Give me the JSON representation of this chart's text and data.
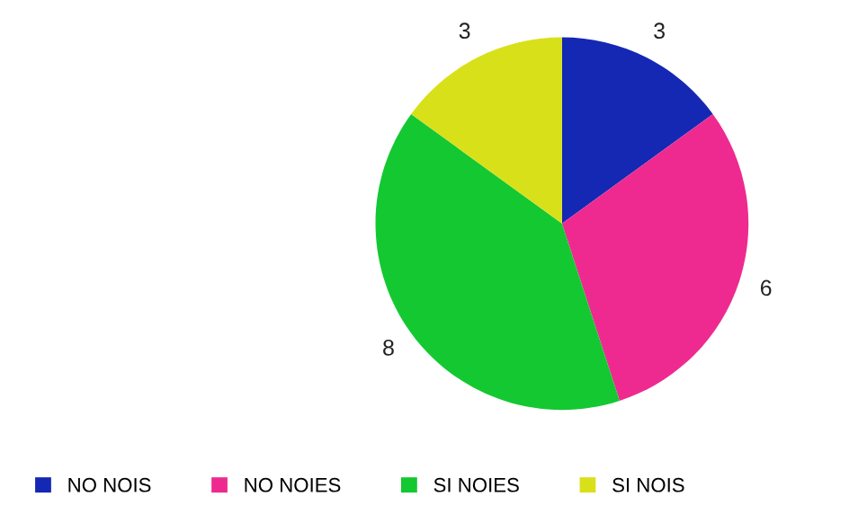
{
  "chart_data": {
    "type": "pie",
    "categories": [
      "NO NOIS",
      "NO NOIES",
      "SI NOIES",
      "SI NOIS"
    ],
    "values": [
      3,
      6,
      8,
      3
    ],
    "colors": [
      "#1428b4",
      "#ee2a90",
      "#14c832",
      "#d8e01a"
    ],
    "data_labels": true,
    "legend": "bottom"
  }
}
